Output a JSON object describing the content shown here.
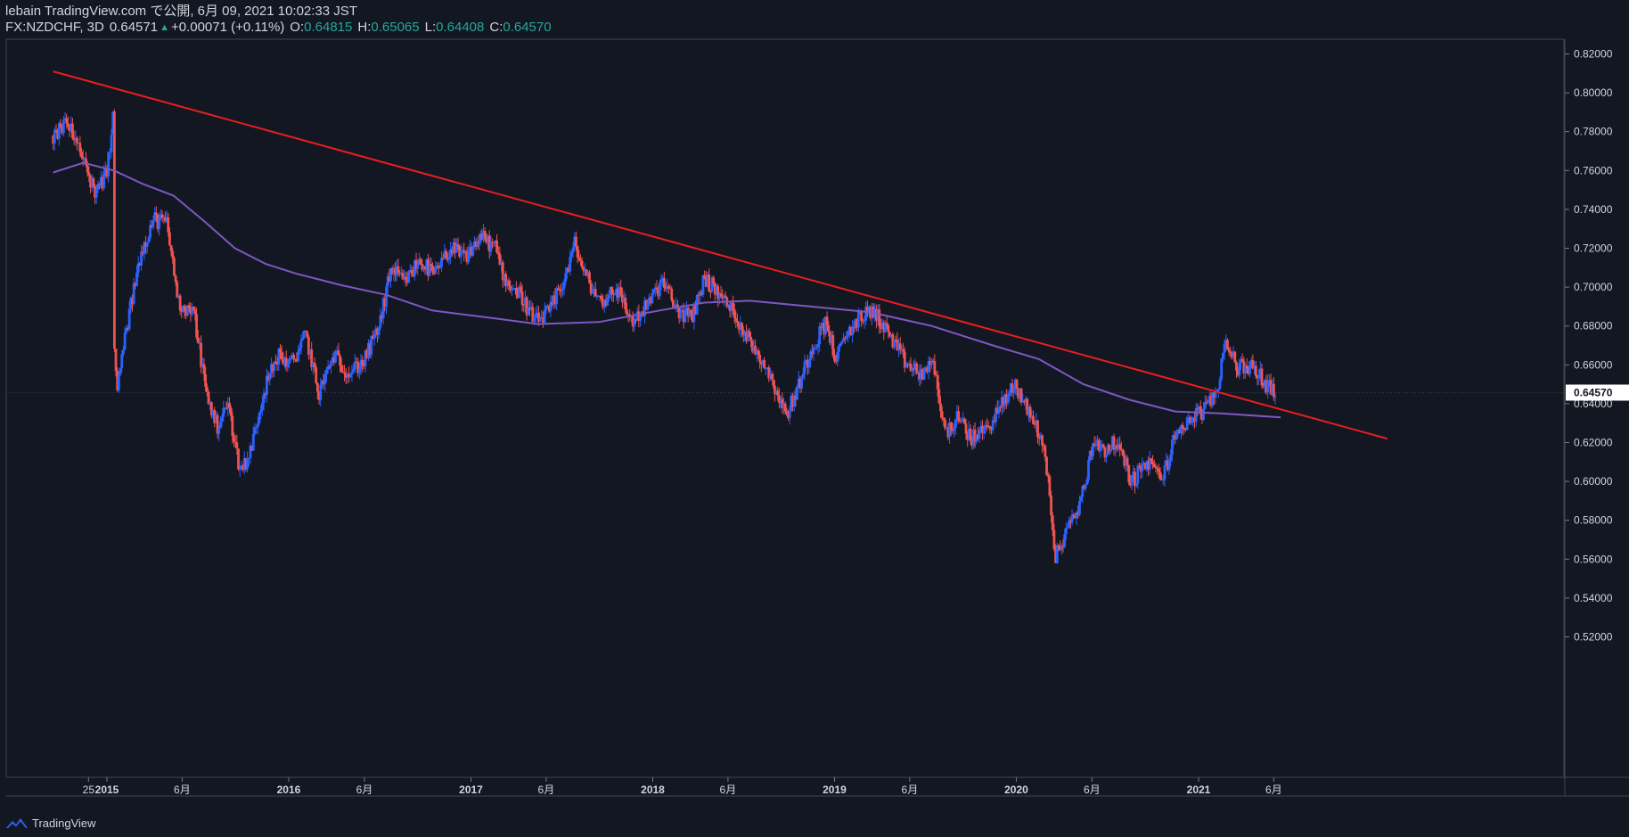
{
  "header": {
    "publish_line": "lebain TradingView.com で公開, 6月 09, 2021 10:02:33 JST",
    "symbol": "FX:NZDCHF, 3D",
    "last": "0.64571",
    "change": "+0.00071 (+0.11%)",
    "o_label": "O:",
    "o_value": "0.64815",
    "h_label": "H:",
    "h_value": "0.65065",
    "l_label": "L:",
    "l_value": "0.64408",
    "c_label": "C:",
    "c_value": "0.64570"
  },
  "footer": {
    "brand": "TradingView"
  },
  "colors": {
    "background": "#131722",
    "up": "#2962ff",
    "down": "#ef5350",
    "trendline": "#e91e1e",
    "ma": "#7e57c2",
    "grid": "#2a2e39",
    "text": "#d1d4dc",
    "price_badge_bg": "#ffffff"
  },
  "chart_data": {
    "type": "candlestick",
    "symbol": "FX:NZDCHF",
    "timeframe": "3D",
    "ylim": [
      0.51,
      0.83
    ],
    "y_ticks": [
      "0.82000",
      "0.80000",
      "0.78000",
      "0.76000",
      "0.74000",
      "0.72000",
      "0.70000",
      "0.68000",
      "0.66000",
      "0.64000",
      "0.62000",
      "0.60000",
      "0.58000",
      "0.56000",
      "0.54000",
      "0.52000"
    ],
    "current_price": "0.64570",
    "x_ticks": [
      {
        "label": "25",
        "date": "2014-11-25"
      },
      {
        "label": "2015",
        "date": "2015-01-01"
      },
      {
        "label": "6月",
        "date": "2015-06-01"
      },
      {
        "label": "2016",
        "date": "2016-01-01"
      },
      {
        "label": "6月",
        "date": "2016-06-01"
      },
      {
        "label": "2017",
        "date": "2017-01-01"
      },
      {
        "label": "6月",
        "date": "2017-06-01"
      },
      {
        "label": "2018",
        "date": "2018-01-01"
      },
      {
        "label": "6月",
        "date": "2018-06-01"
      },
      {
        "label": "2019",
        "date": "2019-01-01"
      },
      {
        "label": "6月",
        "date": "2019-06-01"
      },
      {
        "label": "2020",
        "date": "2020-01-01"
      },
      {
        "label": "6月",
        "date": "2020-06-01"
      },
      {
        "label": "2021",
        "date": "2021-01-01"
      },
      {
        "label": "6月",
        "date": "2021-06-01"
      }
    ],
    "price_path": [
      {
        "date": "2014-09-15",
        "close": 0.778
      },
      {
        "date": "2014-10-15",
        "close": 0.784
      },
      {
        "date": "2014-11-10",
        "close": 0.768
      },
      {
        "date": "2014-12-10",
        "close": 0.748
      },
      {
        "date": "2014-12-30",
        "close": 0.758
      },
      {
        "date": "2015-01-10",
        "close": 0.776
      },
      {
        "date": "2015-01-14",
        "close": 0.795
      },
      {
        "date": "2015-01-16",
        "close": 0.665
      },
      {
        "date": "2015-01-22",
        "close": 0.648
      },
      {
        "date": "2015-02-05",
        "close": 0.672
      },
      {
        "date": "2015-03-10",
        "close": 0.718
      },
      {
        "date": "2015-04-05",
        "close": 0.735
      },
      {
        "date": "2015-05-01",
        "close": 0.733
      },
      {
        "date": "2015-05-25",
        "close": 0.692
      },
      {
        "date": "2015-06-25",
        "close": 0.686
      },
      {
        "date": "2015-07-20",
        "close": 0.645
      },
      {
        "date": "2015-08-10",
        "close": 0.628
      },
      {
        "date": "2015-09-01",
        "close": 0.64
      },
      {
        "date": "2015-09-25",
        "close": 0.606
      },
      {
        "date": "2015-10-15",
        "close": 0.614
      },
      {
        "date": "2015-11-10",
        "close": 0.645
      },
      {
        "date": "2015-12-10",
        "close": 0.665
      },
      {
        "date": "2016-01-05",
        "close": 0.66
      },
      {
        "date": "2016-02-05",
        "close": 0.675
      },
      {
        "date": "2016-03-01",
        "close": 0.645
      },
      {
        "date": "2016-04-01",
        "close": 0.665
      },
      {
        "date": "2016-05-01",
        "close": 0.656
      },
      {
        "date": "2016-06-01",
        "close": 0.662
      },
      {
        "date": "2016-07-01",
        "close": 0.68
      },
      {
        "date": "2016-07-25",
        "close": 0.71
      },
      {
        "date": "2016-08-20",
        "close": 0.702
      },
      {
        "date": "2016-09-20",
        "close": 0.714
      },
      {
        "date": "2016-10-20",
        "close": 0.706
      },
      {
        "date": "2016-11-20",
        "close": 0.72
      },
      {
        "date": "2016-12-20",
        "close": 0.715
      },
      {
        "date": "2017-01-20",
        "close": 0.726
      },
      {
        "date": "2017-02-20",
        "close": 0.72
      },
      {
        "date": "2017-03-10",
        "close": 0.704
      },
      {
        "date": "2017-04-10",
        "close": 0.696
      },
      {
        "date": "2017-05-10",
        "close": 0.682
      },
      {
        "date": "2017-06-10",
        "close": 0.688
      },
      {
        "date": "2017-07-10",
        "close": 0.706
      },
      {
        "date": "2017-07-28",
        "close": 0.722
      },
      {
        "date": "2017-08-20",
        "close": 0.705
      },
      {
        "date": "2017-09-20",
        "close": 0.692
      },
      {
        "date": "2017-10-20",
        "close": 0.7
      },
      {
        "date": "2017-11-20",
        "close": 0.682
      },
      {
        "date": "2017-12-20",
        "close": 0.69
      },
      {
        "date": "2018-01-20",
        "close": 0.703
      },
      {
        "date": "2018-02-20",
        "close": 0.688
      },
      {
        "date": "2018-03-20",
        "close": 0.684
      },
      {
        "date": "2018-04-15",
        "close": 0.705
      },
      {
        "date": "2018-05-15",
        "close": 0.696
      },
      {
        "date": "2018-06-15",
        "close": 0.686
      },
      {
        "date": "2018-07-15",
        "close": 0.672
      },
      {
        "date": "2018-08-15",
        "close": 0.66
      },
      {
        "date": "2018-09-05",
        "close": 0.648
      },
      {
        "date": "2018-09-25",
        "close": 0.634
      },
      {
        "date": "2018-10-15",
        "close": 0.645
      },
      {
        "date": "2018-11-15",
        "close": 0.668
      },
      {
        "date": "2018-12-15",
        "close": 0.682
      },
      {
        "date": "2019-01-05",
        "close": 0.662
      },
      {
        "date": "2019-01-25",
        "close": 0.676
      },
      {
        "date": "2019-02-20",
        "close": 0.684
      },
      {
        "date": "2019-03-20",
        "close": 0.688
      },
      {
        "date": "2019-04-20",
        "close": 0.676
      },
      {
        "date": "2019-05-20",
        "close": 0.662
      },
      {
        "date": "2019-06-20",
        "close": 0.655
      },
      {
        "date": "2019-07-20",
        "close": 0.66
      },
      {
        "date": "2019-08-10",
        "close": 0.625
      },
      {
        "date": "2019-09-05",
        "close": 0.632
      },
      {
        "date": "2019-10-05",
        "close": 0.622
      },
      {
        "date": "2019-11-05",
        "close": 0.628
      },
      {
        "date": "2019-12-05",
        "close": 0.64
      },
      {
        "date": "2019-12-30",
        "close": 0.65
      },
      {
        "date": "2020-01-25",
        "close": 0.636
      },
      {
        "date": "2020-02-15",
        "close": 0.626
      },
      {
        "date": "2020-03-05",
        "close": 0.604
      },
      {
        "date": "2020-03-18",
        "close": 0.56
      },
      {
        "date": "2020-04-10",
        "close": 0.574
      },
      {
        "date": "2020-05-10",
        "close": 0.59
      },
      {
        "date": "2020-06-05",
        "close": 0.622
      },
      {
        "date": "2020-06-25",
        "close": 0.616
      },
      {
        "date": "2020-07-20",
        "close": 0.62
      },
      {
        "date": "2020-08-20",
        "close": 0.6
      },
      {
        "date": "2020-09-20",
        "close": 0.61
      },
      {
        "date": "2020-10-20",
        "close": 0.602
      },
      {
        "date": "2020-11-20",
        "close": 0.626
      },
      {
        "date": "2020-12-20",
        "close": 0.633
      },
      {
        "date": "2021-01-20",
        "close": 0.638
      },
      {
        "date": "2021-02-10",
        "close": 0.65
      },
      {
        "date": "2021-02-25",
        "close": 0.674
      },
      {
        "date": "2021-03-20",
        "close": 0.658
      },
      {
        "date": "2021-04-15",
        "close": 0.66
      },
      {
        "date": "2021-05-10",
        "close": 0.652
      },
      {
        "date": "2021-06-05",
        "close": 0.6457
      }
    ],
    "moving_average": [
      {
        "date": "2014-09-15",
        "value": 0.759
      },
      {
        "date": "2014-11-15",
        "value": 0.764
      },
      {
        "date": "2015-01-15",
        "value": 0.76
      },
      {
        "date": "2015-03-15",
        "value": 0.753
      },
      {
        "date": "2015-05-15",
        "value": 0.747
      },
      {
        "date": "2015-07-15",
        "value": 0.734
      },
      {
        "date": "2015-09-15",
        "value": 0.72
      },
      {
        "date": "2015-11-15",
        "value": 0.712
      },
      {
        "date": "2016-01-15",
        "value": 0.707
      },
      {
        "date": "2016-04-15",
        "value": 0.701
      },
      {
        "date": "2016-07-15",
        "value": 0.696
      },
      {
        "date": "2016-10-15",
        "value": 0.688
      },
      {
        "date": "2017-02-15",
        "value": 0.684
      },
      {
        "date": "2017-05-15",
        "value": 0.681
      },
      {
        "date": "2017-09-15",
        "value": 0.682
      },
      {
        "date": "2018-01-15",
        "value": 0.688
      },
      {
        "date": "2018-04-15",
        "value": 0.692
      },
      {
        "date": "2018-07-15",
        "value": 0.693
      },
      {
        "date": "2018-11-15",
        "value": 0.69
      },
      {
        "date": "2019-03-15",
        "value": 0.687
      },
      {
        "date": "2019-07-15",
        "value": 0.68
      },
      {
        "date": "2019-11-15",
        "value": 0.67
      },
      {
        "date": "2020-02-15",
        "value": 0.663
      },
      {
        "date": "2020-05-15",
        "value": 0.65
      },
      {
        "date": "2020-08-15",
        "value": 0.642
      },
      {
        "date": "2020-11-15",
        "value": 0.636
      },
      {
        "date": "2021-02-15",
        "value": 0.635
      },
      {
        "date": "2021-06-15",
        "value": 0.633
      }
    ],
    "trendline": [
      {
        "date": "2014-09-15",
        "value": 0.811
      },
      {
        "date": "2022-01-15",
        "value": 0.622
      }
    ],
    "grid": false,
    "legend": "none"
  }
}
